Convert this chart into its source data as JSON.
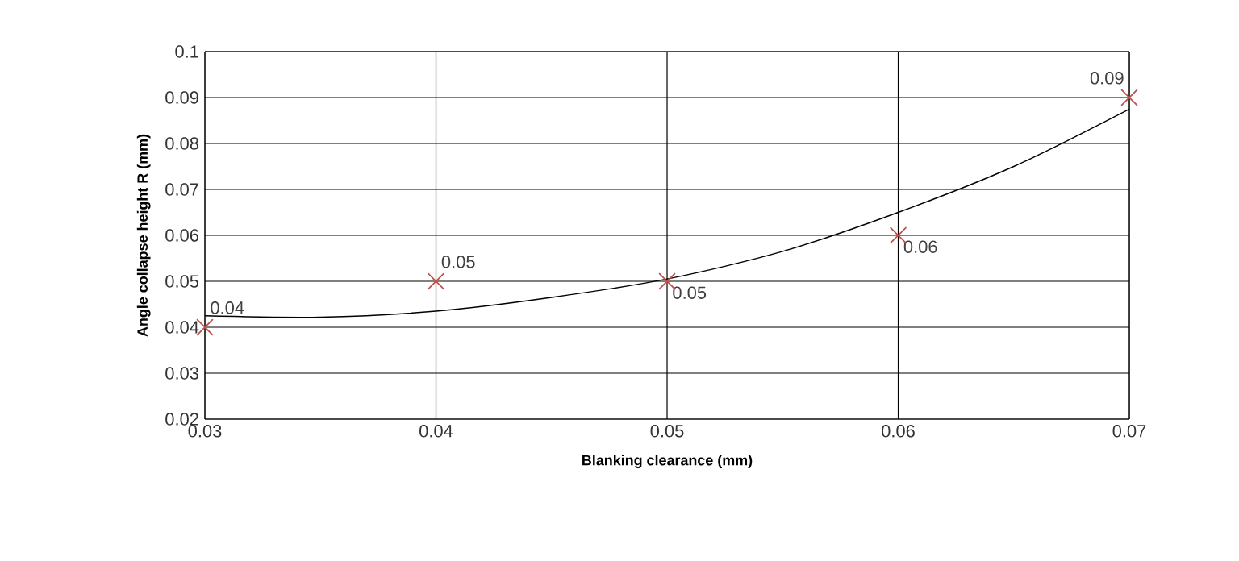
{
  "chart_data": {
    "type": "scatter",
    "xlabel": "Blanking clearance (mm)",
    "ylabel": "Angle collapse height R (mm)",
    "x": [
      0.03,
      0.04,
      0.05,
      0.06,
      0.07
    ],
    "xlim": [
      0.03,
      0.07
    ],
    "xticks": [
      0.03,
      0.04,
      0.05,
      0.06,
      0.07
    ],
    "ylim": [
      0.02,
      0.1
    ],
    "yticks": [
      0.02,
      0.03,
      0.04,
      0.05,
      0.06,
      0.07,
      0.08,
      0.09,
      0.1
    ],
    "grid": true,
    "series": [
      {
        "marker": "cross",
        "color": "#c0504d",
        "values": [
          0.04,
          0.05,
          0.05,
          0.06,
          0.09
        ],
        "value_labels": [
          "0.04",
          "0.05",
          "0.05",
          "0.06",
          "0.09"
        ]
      },
      {
        "type": "line",
        "marker": "none",
        "line_style": "solid",
        "color": "#000000",
        "x": [
          0.03,
          0.035,
          0.04,
          0.045,
          0.05,
          0.055,
          0.06,
          0.065,
          0.07
        ],
        "values": [
          0.0425,
          0.0422,
          0.0435,
          0.0465,
          0.0505,
          0.0565,
          0.065,
          0.075,
          0.0875
        ]
      }
    ]
  }
}
